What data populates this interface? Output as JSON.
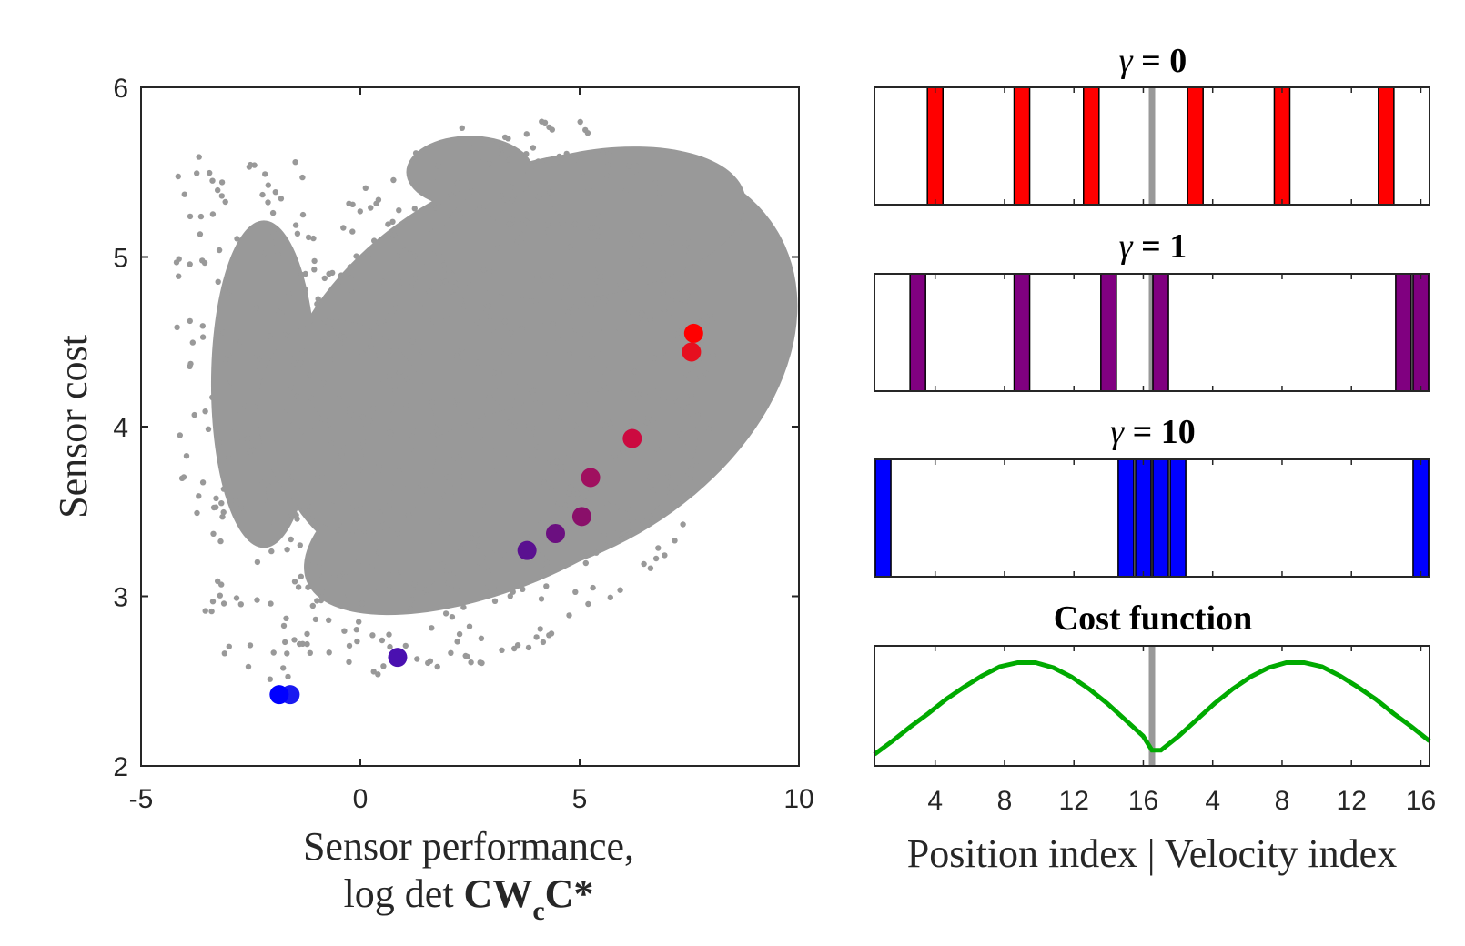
{
  "chart_data": [
    {
      "type": "scatter",
      "xlabel_line1": "Sensor performance,",
      "xlabel_line2_prefix": "log det ",
      "xlabel_bold_cw": "CW",
      "xlabel_sub": "c",
      "xlabel_bold_c": "C*",
      "ylabel": "Sensor cost",
      "xlim": [
        -5,
        10
      ],
      "ylim": [
        2,
        6
      ],
      "xticks": [
        -5,
        0,
        5,
        10
      ],
      "yticks": [
        2,
        3,
        4,
        5,
        6
      ],
      "background_color": "#999999",
      "highlighted_points": [
        {
          "x": 7.6,
          "y": 4.55,
          "color": "#ff0000"
        },
        {
          "x": 7.55,
          "y": 4.44,
          "color": "#e60f1f"
        },
        {
          "x": 6.2,
          "y": 3.93,
          "color": "#cc0a40"
        },
        {
          "x": 5.25,
          "y": 3.7,
          "color": "#a0105f"
        },
        {
          "x": 5.05,
          "y": 3.47,
          "color": "#8a0f6a"
        },
        {
          "x": 4.45,
          "y": 3.37,
          "color": "#6b0f80"
        },
        {
          "x": 3.8,
          "y": 3.27,
          "color": "#5a1090"
        },
        {
          "x": 0.85,
          "y": 2.64,
          "color": "#4a10b0"
        },
        {
          "x": -1.6,
          "y": 2.42,
          "color": "#1a1af0"
        },
        {
          "x": -1.85,
          "y": 2.42,
          "color": "#0000ff"
        }
      ]
    },
    {
      "type": "bar",
      "title_symbol": "γ",
      "title_value": " = 0",
      "color": "#ff0000",
      "xlim": [
        1,
        32
      ],
      "selected_indices": [
        4,
        9,
        13,
        19,
        24,
        30
      ]
    },
    {
      "type": "bar",
      "title_symbol": "γ",
      "title_value": " = 1",
      "color": "#800080",
      "xlim": [
        1,
        32
      ],
      "selected_indices": [
        3,
        9,
        14,
        17,
        31,
        32
      ]
    },
    {
      "type": "bar",
      "title_symbol": "γ",
      "title_value": " = 10",
      "color": "#0000ff",
      "xlim": [
        1,
        32
      ],
      "selected_indices": [
        1,
        15,
        16,
        17,
        18,
        32
      ]
    },
    {
      "type": "line",
      "title": "Cost function",
      "color": "#00aa00",
      "xlim": [
        1,
        32
      ],
      "x": [
        1,
        2,
        3,
        4,
        5,
        6,
        7,
        8,
        9,
        10,
        11,
        12,
        13,
        14,
        15,
        16,
        16.5,
        17,
        18,
        19,
        20,
        21,
        22,
        23,
        24,
        25,
        26,
        27,
        28,
        29,
        30,
        31,
        32
      ],
      "y": [
        0.06,
        0.19,
        0.33,
        0.46,
        0.6,
        0.72,
        0.83,
        0.92,
        0.96,
        0.96,
        0.91,
        0.82,
        0.7,
        0.56,
        0.4,
        0.24,
        0.1,
        0.1,
        0.24,
        0.4,
        0.56,
        0.7,
        0.82,
        0.91,
        0.96,
        0.96,
        0.92,
        0.83,
        0.72,
        0.6,
        0.46,
        0.33,
        0.19
      ],
      "xtick_labels": [
        "4",
        "8",
        "12",
        "16",
        "4",
        "8",
        "12",
        "16"
      ],
      "xlabel": "Position index | Velocity index"
    }
  ]
}
